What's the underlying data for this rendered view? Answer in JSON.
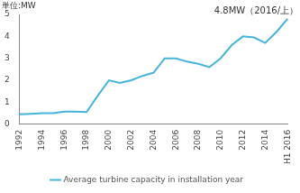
{
  "chart_data": {
    "type": "line",
    "y_label": "単位:MW",
    "categories": [
      "1992",
      null,
      "1994",
      null,
      "1996",
      null,
      "1998",
      null,
      "2000",
      null,
      "2002",
      null,
      "2004",
      null,
      "2006",
      null,
      "2008",
      null,
      "2010",
      null,
      "2012",
      null,
      "2014",
      null,
      "H1 2016"
    ],
    "series": [
      {
        "name": "Average turbine capacity in installation year",
        "color": "#46b3dc",
        "values": [
          0.45,
          0.47,
          0.5,
          0.5,
          0.57,
          0.57,
          0.55,
          1.3,
          2.0,
          1.88,
          2.0,
          2.2,
          2.35,
          3.0,
          3.0,
          2.85,
          2.75,
          2.6,
          3.0,
          3.6,
          4.0,
          3.95,
          3.7,
          4.2,
          4.8
        ]
      }
    ],
    "ylim": [
      0,
      5
    ],
    "yticks": [
      0,
      1,
      2,
      3,
      4,
      5
    ],
    "annotations": [
      {
        "text": "4.8MW（2016/上）",
        "x": "H1 2016",
        "y": 4.8
      }
    ],
    "grid": false,
    "legend": "bottom"
  }
}
